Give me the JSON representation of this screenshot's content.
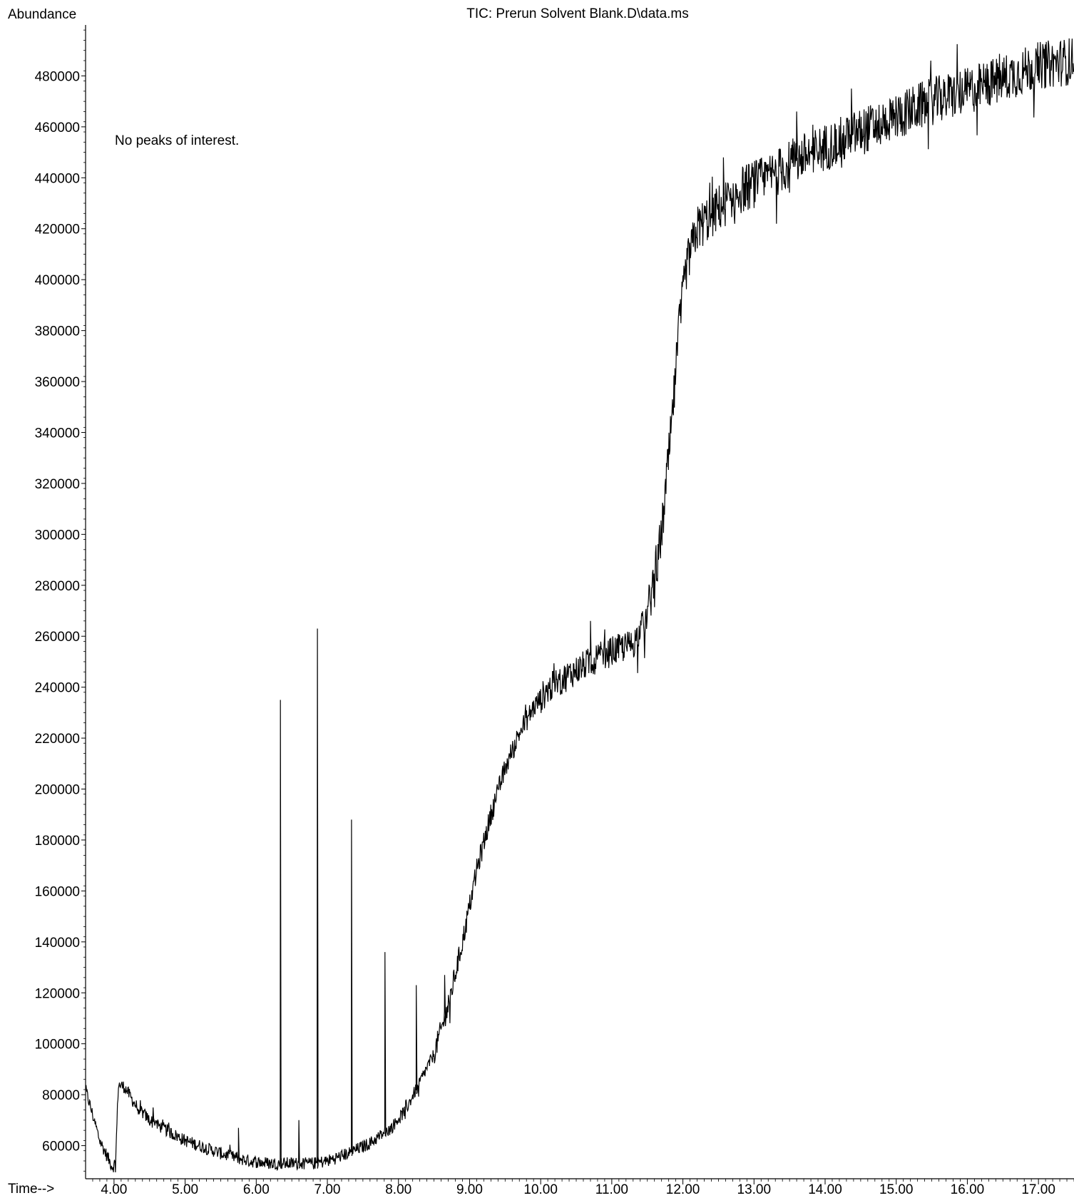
{
  "chart_data": {
    "type": "line",
    "title": "TIC: Prerun Solvent Blank.D\\data.ms",
    "ylabel": "Abundance",
    "xlabel": "Time-->",
    "annotation": "No peaks of interest.",
    "xlim": [
      3.6,
      17.5
    ],
    "ylim": [
      47000,
      500000
    ],
    "x_ticks": [
      "4.00",
      "5.00",
      "6.00",
      "7.00",
      "8.00",
      "9.00",
      "10.00",
      "11.00",
      "12.00",
      "13.00",
      "14.00",
      "15.00",
      "16.00",
      "17.00"
    ],
    "y_ticks": [
      "60000",
      "80000",
      "100000",
      "120000",
      "140000",
      "160000",
      "180000",
      "200000",
      "220000",
      "240000",
      "260000",
      "280000",
      "300000",
      "320000",
      "340000",
      "360000",
      "380000",
      "400000",
      "420000",
      "440000",
      "460000",
      "480000"
    ],
    "grid": false,
    "series": [
      {
        "color": "#000000",
        "baseline": [
          [
            3.6,
            82000
          ],
          [
            3.7,
            72000
          ],
          [
            3.8,
            62000
          ],
          [
            3.9,
            56000
          ],
          [
            3.97,
            52000
          ],
          [
            4.02,
            52000
          ],
          [
            4.06,
            84000
          ],
          [
            4.15,
            83000
          ],
          [
            4.3,
            76000
          ],
          [
            4.5,
            70000
          ],
          [
            4.8,
            65000
          ],
          [
            5.0,
            62000
          ],
          [
            5.3,
            59000
          ],
          [
            5.6,
            56000
          ],
          [
            5.9,
            54000
          ],
          [
            6.2,
            53000
          ],
          [
            6.5,
            53000
          ],
          [
            6.8,
            53000
          ],
          [
            7.0,
            54000
          ],
          [
            7.3,
            57000
          ],
          [
            7.6,
            61000
          ],
          [
            7.9,
            67000
          ],
          [
            8.1,
            74000
          ],
          [
            8.3,
            85000
          ],
          [
            8.5,
            96000
          ],
          [
            8.7,
            115000
          ],
          [
            8.9,
            140000
          ],
          [
            9.1,
            168000
          ],
          [
            9.3,
            190000
          ],
          [
            9.5,
            208000
          ],
          [
            9.7,
            222000
          ],
          [
            9.9,
            232000
          ],
          [
            10.1,
            239000
          ],
          [
            10.4,
            245000
          ],
          [
            10.7,
            250000
          ],
          [
            11.0,
            254000
          ],
          [
            11.3,
            257000
          ],
          [
            11.5,
            268000
          ],
          [
            11.7,
            300000
          ],
          [
            11.85,
            345000
          ],
          [
            11.95,
            382000
          ],
          [
            12.05,
            405000
          ],
          [
            12.2,
            420000
          ],
          [
            12.5,
            428000
          ],
          [
            12.8,
            435000
          ],
          [
            13.2,
            440000
          ],
          [
            13.6,
            447000
          ],
          [
            14.0,
            452000
          ],
          [
            14.5,
            458000
          ],
          [
            15.0,
            464000
          ],
          [
            15.5,
            470000
          ],
          [
            16.0,
            474000
          ],
          [
            16.5,
            479000
          ],
          [
            17.0,
            484000
          ],
          [
            17.5,
            486000
          ]
        ],
        "spikes": [
          [
            4.55,
            75000
          ],
          [
            5.75,
            67000
          ],
          [
            6.34,
            235000
          ],
          [
            6.6,
            70000
          ],
          [
            6.86,
            263000
          ],
          [
            7.34,
            188000
          ],
          [
            7.81,
            136000
          ],
          [
            8.25,
            123000
          ],
          [
            8.65,
            127000
          ],
          [
            10.7,
            266000
          ],
          [
            12.57,
            448000
          ],
          [
            13.6,
            466000
          ],
          [
            14.37,
            475000
          ]
        ]
      }
    ]
  }
}
